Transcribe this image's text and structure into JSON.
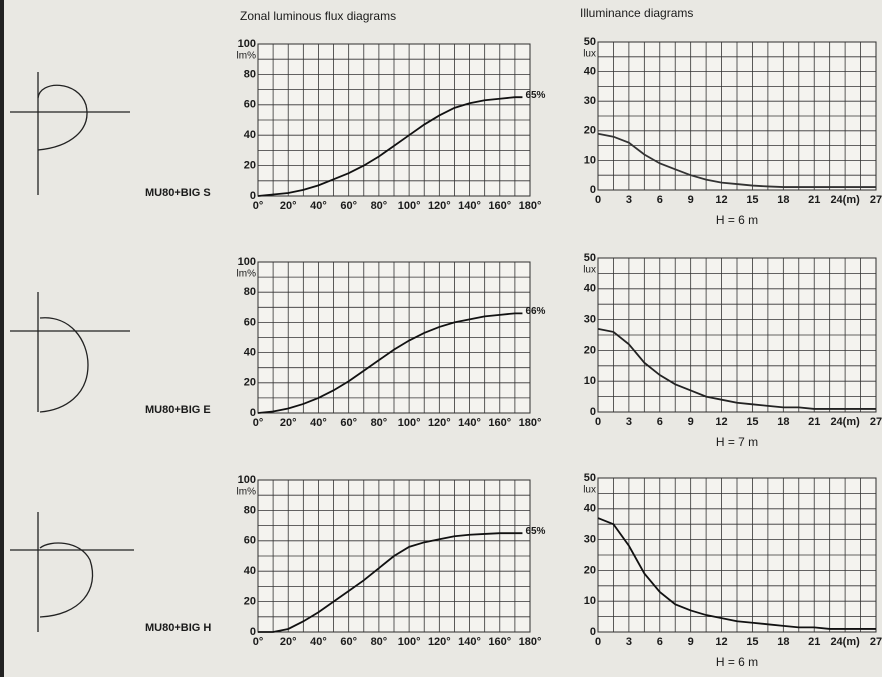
{
  "headers": [
    "Zonal luminous flux diagrams",
    "Illuminance diagrams"
  ],
  "rows": [
    "MU80+BIG S",
    "MU80+BIG E",
    "MU80+BIG H"
  ],
  "chart_data": [
    {
      "type": "line",
      "ylabel": "lm%",
      "xlim": [
        0,
        180
      ],
      "ylim": [
        0,
        100
      ],
      "xticks": [
        {
          "value": 0,
          "label": "0°"
        },
        {
          "value": 20,
          "label": "20°"
        },
        {
          "value": 40,
          "label": "40°"
        },
        {
          "value": 60,
          "label": "60°"
        },
        {
          "value": 80,
          "label": "80°"
        },
        {
          "value": 100,
          "label": "100°"
        },
        {
          "value": 120,
          "label": "120°"
        },
        {
          "value": 140,
          "label": "140°"
        },
        {
          "value": 160,
          "label": "160°"
        },
        {
          "value": 180,
          "label": "180°"
        }
      ],
      "yticks": [
        0,
        20,
        40,
        60,
        80,
        100
      ],
      "x_minor_ticks": [
        10,
        30,
        50,
        70,
        90,
        110,
        130,
        150,
        170
      ],
      "y_minor_ticks": [
        10,
        30,
        50,
        70,
        90
      ],
      "grid": true,
      "x": [
        0,
        10,
        20,
        30,
        40,
        50,
        60,
        70,
        80,
        90,
        100,
        110,
        120,
        130,
        140,
        150,
        160,
        170,
        175
      ],
      "series": [
        {
          "color": "#111111",
          "values": [
            0,
            1,
            2,
            4,
            7,
            11,
            15,
            20,
            26,
            33,
            40,
            47,
            53,
            58,
            61,
            63,
            64,
            65,
            65
          ],
          "value_labels": [
            null,
            null,
            null,
            null,
            null,
            null,
            null,
            null,
            null,
            null,
            null,
            null,
            null,
            null,
            null,
            null,
            null,
            null,
            "65%"
          ]
        }
      ]
    },
    {
      "type": "line",
      "ylabel": "lux",
      "caption": "H = 6 m",
      "xlim": [
        0,
        27
      ],
      "ylim": [
        0,
        50
      ],
      "xticks": [
        0,
        3,
        6,
        9,
        12,
        15,
        18,
        21,
        {
          "value": 24,
          "label": "24(m)"
        },
        27
      ],
      "yticks": [
        0,
        10,
        20,
        30,
        40,
        50
      ],
      "x_minor_ticks": [
        1.5,
        4.5,
        7.5,
        10.5,
        13.5,
        16.5,
        19.5,
        22.5,
        25.5
      ],
      "y_minor_ticks": [
        5,
        15,
        25,
        35,
        45
      ],
      "grid": true,
      "x": [
        0,
        1.5,
        3,
        4.5,
        6,
        7.5,
        9,
        10.5,
        12,
        13.5,
        15,
        16.5,
        18,
        19.5,
        21,
        22.5,
        24,
        25.5,
        27
      ],
      "series": [
        {
          "color": "#333333",
          "values": [
            19,
            18,
            16,
            12,
            9,
            7,
            5,
            3.5,
            2.5,
            2,
            1.5,
            1.2,
            1,
            1,
            1,
            1,
            1,
            1,
            1
          ]
        }
      ]
    },
    {
      "type": "line",
      "ylabel": "lm%",
      "xlim": [
        0,
        180
      ],
      "ylim": [
        0,
        100
      ],
      "xticks": [
        {
          "value": 0,
          "label": "0°"
        },
        {
          "value": 20,
          "label": "20°"
        },
        {
          "value": 40,
          "label": "40°"
        },
        {
          "value": 60,
          "label": "60°"
        },
        {
          "value": 80,
          "label": "80°"
        },
        {
          "value": 100,
          "label": "100°"
        },
        {
          "value": 120,
          "label": "120°"
        },
        {
          "value": 140,
          "label": "140°"
        },
        {
          "value": 160,
          "label": "160°"
        },
        {
          "value": 180,
          "label": "180°"
        }
      ],
      "yticks": [
        0,
        20,
        40,
        60,
        80,
        100
      ],
      "x_minor_ticks": [
        10,
        30,
        50,
        70,
        90,
        110,
        130,
        150,
        170
      ],
      "y_minor_ticks": [
        10,
        30,
        50,
        70,
        90
      ],
      "grid": true,
      "x": [
        0,
        10,
        20,
        30,
        40,
        50,
        60,
        70,
        80,
        90,
        100,
        110,
        120,
        130,
        140,
        150,
        160,
        170,
        175
      ],
      "series": [
        {
          "color": "#111111",
          "values": [
            0,
            1,
            3,
            6,
            10,
            15,
            21,
            28,
            35,
            42,
            48,
            53,
            57,
            60,
            62,
            64,
            65,
            66,
            66
          ],
          "value_labels": [
            null,
            null,
            null,
            null,
            null,
            null,
            null,
            null,
            null,
            null,
            null,
            null,
            null,
            null,
            null,
            null,
            null,
            null,
            "66%"
          ]
        }
      ]
    },
    {
      "type": "line",
      "ylabel": "lux",
      "caption": "H = 7 m",
      "xlim": [
        0,
        27
      ],
      "ylim": [
        0,
        50
      ],
      "xticks": [
        0,
        3,
        6,
        9,
        12,
        15,
        18,
        21,
        {
          "value": 24,
          "label": "24(m)"
        },
        27
      ],
      "yticks": [
        0,
        10,
        20,
        30,
        40,
        50
      ],
      "x_minor_ticks": [
        1.5,
        4.5,
        7.5,
        10.5,
        13.5,
        16.5,
        19.5,
        22.5,
        25.5
      ],
      "y_minor_ticks": [
        5,
        15,
        25,
        35,
        45
      ],
      "grid": true,
      "x": [
        0,
        1.5,
        3,
        4.5,
        6,
        7.5,
        9,
        10.5,
        12,
        13.5,
        15,
        16.5,
        18,
        19.5,
        21,
        22.5,
        24,
        25.5,
        27
      ],
      "series": [
        {
          "color": "#222222",
          "values": [
            27,
            26,
            22,
            16,
            12,
            9,
            7,
            5,
            4,
            3,
            2.5,
            2,
            1.5,
            1.5,
            1,
            1,
            1,
            1,
            1
          ]
        }
      ]
    },
    {
      "type": "line",
      "ylabel": "lm%",
      "xlim": [
        0,
        180
      ],
      "ylim": [
        0,
        100
      ],
      "xticks": [
        {
          "value": 0,
          "label": "0°"
        },
        {
          "value": 20,
          "label": "20°"
        },
        {
          "value": 40,
          "label": "40°"
        },
        {
          "value": 60,
          "label": "60°"
        },
        {
          "value": 80,
          "label": "80°"
        },
        {
          "value": 100,
          "label": "100°"
        },
        {
          "value": 120,
          "label": "120°"
        },
        {
          "value": 140,
          "label": "140°"
        },
        {
          "value": 160,
          "label": "160°"
        },
        {
          "value": 180,
          "label": "180°"
        }
      ],
      "yticks": [
        0,
        20,
        40,
        60,
        80,
        100
      ],
      "x_minor_ticks": [
        10,
        30,
        50,
        70,
        90,
        110,
        130,
        150,
        170
      ],
      "y_minor_ticks": [
        10,
        30,
        50,
        70,
        90
      ],
      "grid": true,
      "x": [
        0,
        10,
        20,
        30,
        40,
        50,
        60,
        70,
        80,
        90,
        100,
        110,
        120,
        130,
        140,
        150,
        160,
        170,
        175
      ],
      "series": [
        {
          "color": "#111111",
          "values": [
            0,
            0,
            2,
            7,
            13,
            20,
            27,
            34,
            42,
            50,
            56,
            59,
            61,
            63,
            64,
            64.5,
            65,
            65,
            65
          ],
          "value_labels": [
            null,
            null,
            null,
            null,
            null,
            null,
            null,
            null,
            null,
            null,
            null,
            null,
            null,
            null,
            null,
            null,
            null,
            null,
            "65%"
          ]
        }
      ]
    },
    {
      "type": "line",
      "ylabel": "lux",
      "caption": "H = 6 m",
      "xlim": [
        0,
        27
      ],
      "ylim": [
        0,
        50
      ],
      "xticks": [
        0,
        3,
        6,
        9,
        12,
        15,
        18,
        21,
        {
          "value": 24,
          "label": "24(m)"
        },
        27
      ],
      "yticks": [
        0,
        10,
        20,
        30,
        40,
        50
      ],
      "x_minor_ticks": [
        1.5,
        4.5,
        7.5,
        10.5,
        13.5,
        16.5,
        19.5,
        22.5,
        25.5
      ],
      "y_minor_ticks": [
        5,
        15,
        25,
        35,
        45
      ],
      "grid": true,
      "x": [
        0,
        1.5,
        3,
        4.5,
        6,
        7.5,
        9,
        10.5,
        12,
        13.5,
        15,
        16.5,
        18,
        19.5,
        21,
        22.5,
        24,
        25.5,
        27
      ],
      "series": [
        {
          "color": "#111111",
          "values": [
            37,
            35,
            28,
            19,
            13,
            9,
            7,
            5.5,
            4.5,
            3.5,
            3,
            2.5,
            2,
            1.5,
            1.5,
            1,
            1,
            1,
            1
          ]
        }
      ]
    }
  ]
}
